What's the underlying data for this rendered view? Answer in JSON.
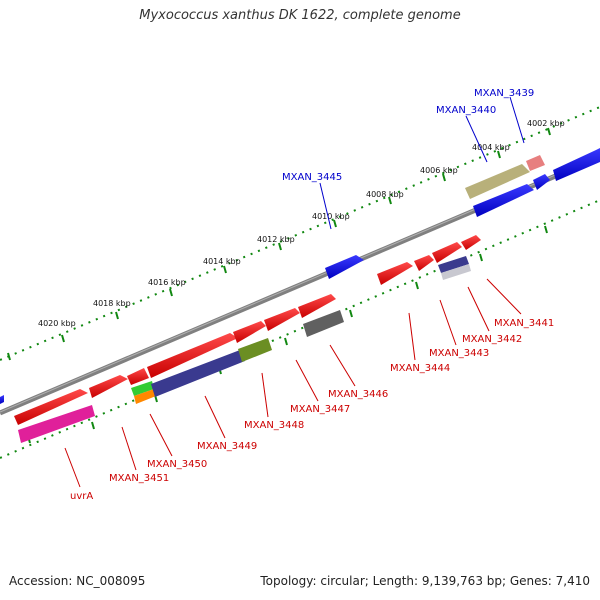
{
  "title": "Myxococcus xanthus DK 1622, complete genome",
  "footer": {
    "accession": "Accession: NC_008095",
    "summary": "Topology: circular; Length: 9,139,763 bp; Genes: 7,410"
  },
  "colors": {
    "forward_gene": "#0000ee",
    "reverse_gene": "#ee0000",
    "forward_label": "#0000cc",
    "reverse_label": "#cc0000",
    "backbone": "#808080",
    "tick": "#118811"
  },
  "scale_labels": [
    "4002 kbp",
    "4004 kbp",
    "4006 kbp",
    "4008 kbp",
    "4010 kbp",
    "4012 kbp",
    "4014 kbp",
    "4016 kbp",
    "4018 kbp",
    "4020 kbp"
  ],
  "forward_labels": [
    "MXAN_3439",
    "MXAN_3440",
    "MXAN_3445"
  ],
  "reverse_labels": [
    "MXAN_3441",
    "MXAN_3442",
    "MXAN_3443",
    "MXAN_3444",
    "MXAN_3446",
    "MXAN_3447",
    "MXAN_3448",
    "MXAN_3449",
    "MXAN_3450",
    "MXAN_3451",
    "uvrA"
  ]
}
